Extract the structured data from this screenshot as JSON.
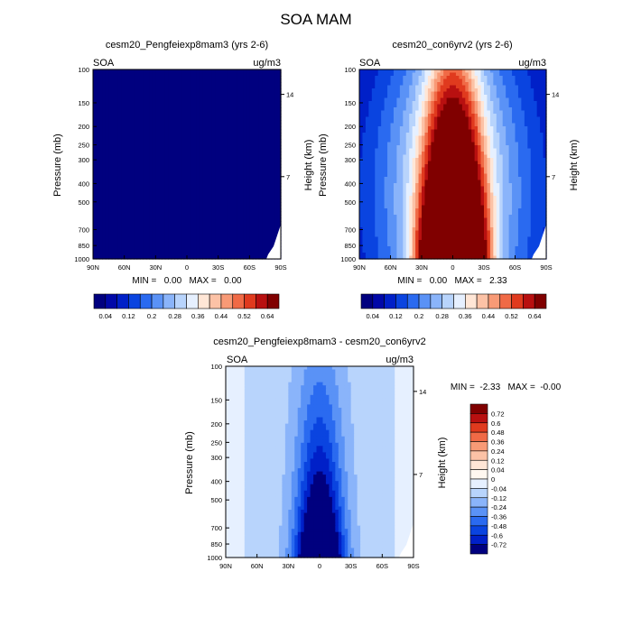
{
  "figure": {
    "title": "SOA MAM"
  },
  "chart_data": [
    {
      "type": "heatmap",
      "title": "cesm20_Pengfeiexp8mam3 (yrs 2-6)",
      "left_label": "SOA",
      "units": "ug/m3",
      "ylabel": "Pressure (mb)",
      "ylabel_right": "Height (km)",
      "x_ticks": [
        "90N",
        "60N",
        "30N",
        "0",
        "30S",
        "60S",
        "90S"
      ],
      "y_ticks": [
        "100",
        "150",
        "200",
        "250",
        "300",
        "400",
        "500",
        "700",
        "850",
        "1000"
      ],
      "height_ticks": [
        "14",
        "7"
      ],
      "stats_text": "MIN =   0.00   MAX =   0.00",
      "min": 0.0,
      "max": 0.0,
      "field": "zero"
    },
    {
      "type": "heatmap",
      "title": "cesm20_con6yrv2 (yrs 2-6)",
      "left_label": "SOA",
      "units": "ug/m3",
      "ylabel": "Pressure (mb)",
      "ylabel_right": "Height (km)",
      "x_ticks": [
        "90N",
        "60N",
        "30N",
        "0",
        "30S",
        "60S",
        "90S"
      ],
      "y_ticks": [
        "100",
        "150",
        "200",
        "250",
        "300",
        "400",
        "500",
        "700",
        "850",
        "1000"
      ],
      "height_ticks": [
        "14",
        "7"
      ],
      "stats_text": "MIN =   0.00   MAX =   2.33",
      "min": 0.0,
      "max": 2.33,
      "field": "control"
    },
    {
      "type": "heatmap",
      "title": "cesm20_Pengfeiexp8mam3 - cesm20_con6yrv2",
      "left_label": "SOA",
      "units": "ug/m3",
      "ylabel": "Pressure (mb)",
      "ylabel_right": "Height (km)",
      "x_ticks": [
        "90N",
        "60N",
        "30N",
        "0",
        "30S",
        "60S",
        "90S"
      ],
      "y_ticks": [
        "100",
        "150",
        "200",
        "250",
        "300",
        "400",
        "500",
        "700",
        "850",
        "1000"
      ],
      "height_ticks": [
        "14",
        "7"
      ],
      "stats_text": "MIN =  -2.33   MAX =  -0.00",
      "min": -2.33,
      "max": 0.0,
      "field": "difference"
    }
  ],
  "colorbars": {
    "absolute": {
      "labels": [
        "0.04",
        "0.12",
        "0.2",
        "0.28",
        "0.36",
        "0.44",
        "0.52",
        "0.64"
      ],
      "colors": [
        "#00007f",
        "#0008a8",
        "#0020c8",
        "#0a44e0",
        "#2a6af0",
        "#5a92f6",
        "#8ab4fa",
        "#b8d4fc",
        "#e6f0ff",
        "#ffe6d6",
        "#fcc2a6",
        "#f89a76",
        "#f06a46",
        "#e03a1e",
        "#b81010",
        "#800000"
      ]
    },
    "difference": {
      "labels": [
        "0.72",
        "0.6",
        "0.48",
        "0.36",
        "0.24",
        "0.12",
        "0.04",
        "0",
        "-0.04",
        "-0.12",
        "-0.24",
        "-0.36",
        "-0.48",
        "-0.6",
        "-0.72"
      ],
      "colors": [
        "#800000",
        "#b81010",
        "#e03a1e",
        "#f06a46",
        "#f89a76",
        "#fcc2a6",
        "#ffe6d6",
        "#fff8f0",
        "#e6f0ff",
        "#b8d4fc",
        "#8ab4fa",
        "#5a92f6",
        "#2a6af0",
        "#0a44e0",
        "#0020c8",
        "#00007f"
      ]
    }
  }
}
